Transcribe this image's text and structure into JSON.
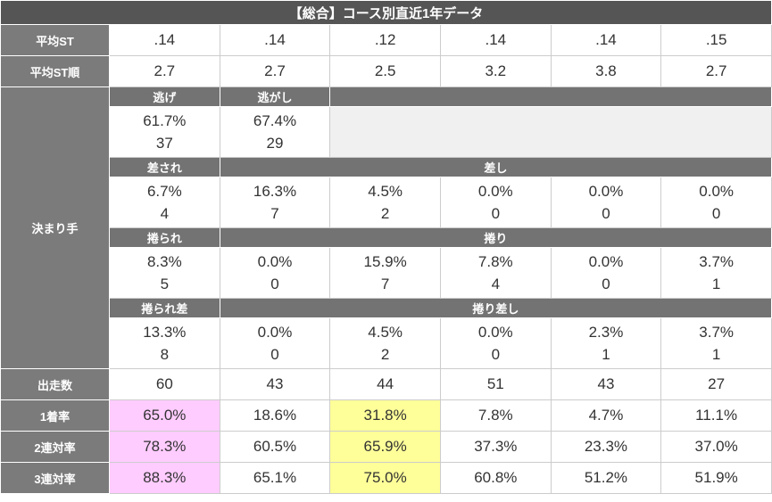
{
  "title": "【総合】コース別直近1年データ",
  "rows": [
    {
      "label": "平均ST",
      "cells": [
        ".14",
        ".14",
        ".12",
        ".14",
        ".14",
        ".15"
      ]
    },
    {
      "label": "平均ST順",
      "cells": [
        "2.7",
        "2.7",
        "2.5",
        "3.2",
        "3.8",
        "2.7"
      ]
    }
  ],
  "kimarite": {
    "label": "決まり手",
    "sections": [
      {
        "headers": [
          "逃げ",
          "逃がし"
        ],
        "rates": [
          "61.7%",
          "67.4%"
        ],
        "counts": [
          "37",
          "29"
        ]
      },
      {
        "headers": [
          "差され",
          "差し"
        ],
        "rates": [
          "6.7%",
          "16.3%",
          "4.5%",
          "0.0%",
          "0.0%",
          "0.0%"
        ],
        "counts": [
          "4",
          "7",
          "2",
          "0",
          "0",
          "0"
        ]
      },
      {
        "headers": [
          "捲られ",
          "捲り"
        ],
        "rates": [
          "8.3%",
          "0.0%",
          "15.9%",
          "7.8%",
          "0.0%",
          "3.7%"
        ],
        "counts": [
          "5",
          "0",
          "7",
          "4",
          "0",
          "1"
        ]
      },
      {
        "headers": [
          "捲られ差",
          "捲り差し"
        ],
        "rates": [
          "13.3%",
          "0.0%",
          "4.5%",
          "0.0%",
          "2.3%",
          "3.7%"
        ],
        "counts": [
          "8",
          "0",
          "2",
          "0",
          "1",
          "1"
        ]
      }
    ]
  },
  "stats": [
    {
      "label": "出走数",
      "cells": [
        "60",
        "43",
        "44",
        "51",
        "43",
        "27"
      ]
    },
    {
      "label": "1着率",
      "cells": [
        "65.0%",
        "18.6%",
        "31.8%",
        "7.8%",
        "4.7%",
        "11.1%"
      ]
    },
    {
      "label": "2連対率",
      "cells": [
        "78.3%",
        "60.5%",
        "65.9%",
        "37.3%",
        "23.3%",
        "37.0%"
      ]
    },
    {
      "label": "3連対率",
      "cells": [
        "88.3%",
        "65.1%",
        "75.0%",
        "60.8%",
        "51.2%",
        "51.9%"
      ]
    }
  ]
}
